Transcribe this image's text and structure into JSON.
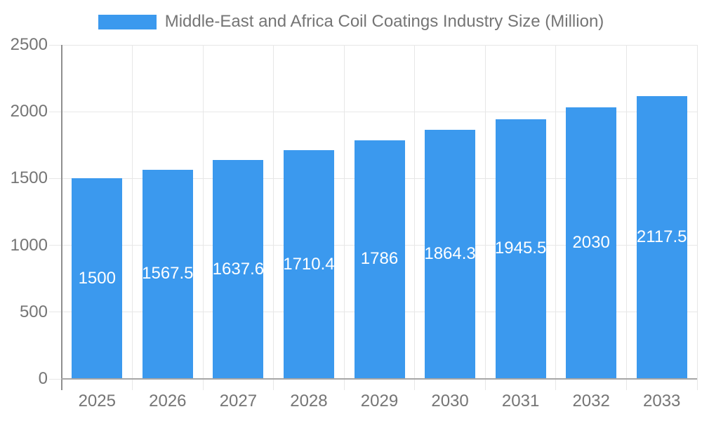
{
  "chart_data": {
    "type": "bar",
    "title": "Middle-East and Africa Coil Coatings Industry Size (Million)",
    "categories": [
      "2025",
      "2026",
      "2027",
      "2028",
      "2029",
      "2030",
      "2031",
      "2032",
      "2033"
    ],
    "values": [
      1500,
      1567.5,
      1637.6,
      1710.4,
      1786,
      1864.3,
      1945.5,
      2030,
      2117.5
    ],
    "value_labels": [
      "1500",
      "1567.5",
      "1637.6",
      "1710.4",
      "1786",
      "1864.3",
      "1945.5",
      "2030",
      "2117.5"
    ],
    "xlabel": "",
    "ylabel": "",
    "ylim": [
      0,
      2500
    ],
    "yticks": [
      0,
      500,
      1000,
      1500,
      2000,
      2500
    ],
    "ytick_labels": [
      "0",
      "500",
      "1000",
      "1500",
      "2000",
      "2500"
    ],
    "grid": true,
    "legend_position": "top",
    "legend_entries": [
      "Middle-East and Africa Coil Coatings Industry Size (Million)"
    ],
    "value_label_position": "inside-middle",
    "colors": {
      "bar": "#3b99ee",
      "text": "#757575",
      "value_label": "#ffffff",
      "gridline": "#e7e7e7",
      "axis": "#8f8f8f",
      "background": "#ffffff"
    }
  }
}
